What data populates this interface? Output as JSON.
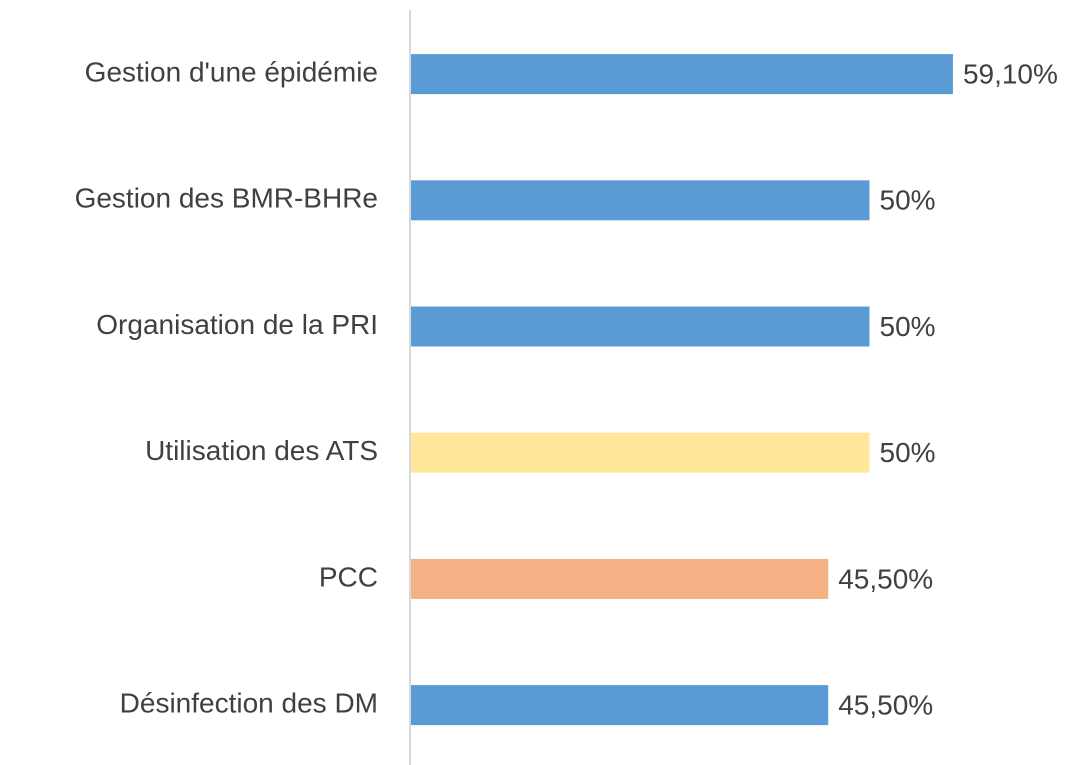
{
  "chart_data": {
    "type": "barh",
    "categories": [
      "Gestion d'une épidémie",
      "Gestion des BMR-BHRe",
      "Organisation de la PRI",
      "Utilisation des ATS",
      "PCC",
      "Désinfection des DM"
    ],
    "values": [
      59.1,
      50,
      50,
      50,
      45.5,
      45.5
    ],
    "value_labels": [
      "59,10%",
      "50%",
      "50%",
      "50%",
      "45,50%",
      "45,50%"
    ],
    "colors": [
      "#5b9bd5",
      "#5b9bd5",
      "#5b9bd5",
      "#ffe699",
      "#f4b183",
      "#5b9bd5"
    ]
  }
}
